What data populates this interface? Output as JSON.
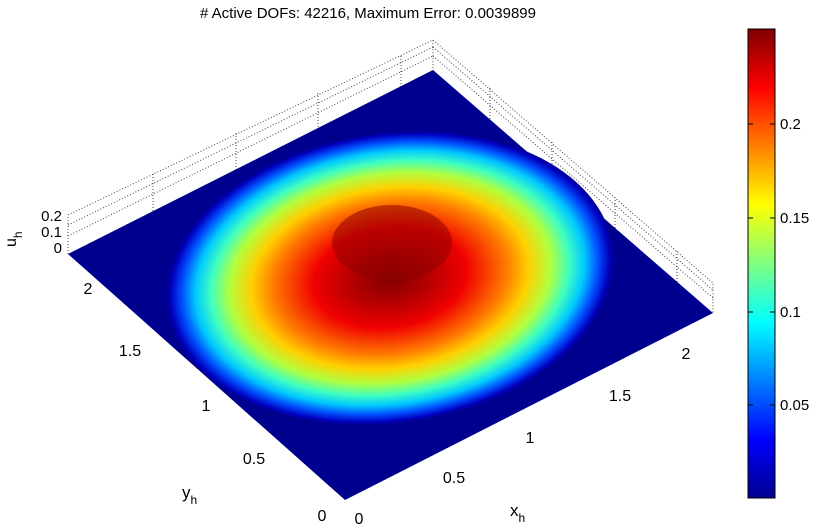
{
  "chart_data": {
    "type": "surface",
    "title": "# Active DOFs: 42216, Maximum Error: 0.0039899",
    "xlabel": {
      "base": "x",
      "sub": "h"
    },
    "ylabel": {
      "base": "y",
      "sub": "h"
    },
    "zlabel": {
      "base": "u",
      "sub": "h"
    },
    "xlim": [
      0,
      2.25
    ],
    "ylim": [
      0,
      2.25
    ],
    "zlim": [
      0,
      0.25
    ],
    "x_ticks": [
      "0",
      "0.5",
      "1",
      "1.5",
      "2"
    ],
    "y_ticks": [
      "0",
      "0.5",
      "1",
      "1.5",
      "2"
    ],
    "z_ticks": [
      "0",
      "0.1",
      "0.2"
    ],
    "surface": {
      "shape": "radially symmetric bump, zero outside a disk",
      "center": [
        1.125,
        1.125
      ],
      "support_radius": 1.0,
      "peak_value": 0.25
    },
    "colorbar": {
      "colormap": "jet",
      "range": [
        0,
        0.25
      ],
      "ticks": [
        "0.05",
        "0.1",
        "0.15",
        "0.2"
      ]
    },
    "grid": true
  }
}
